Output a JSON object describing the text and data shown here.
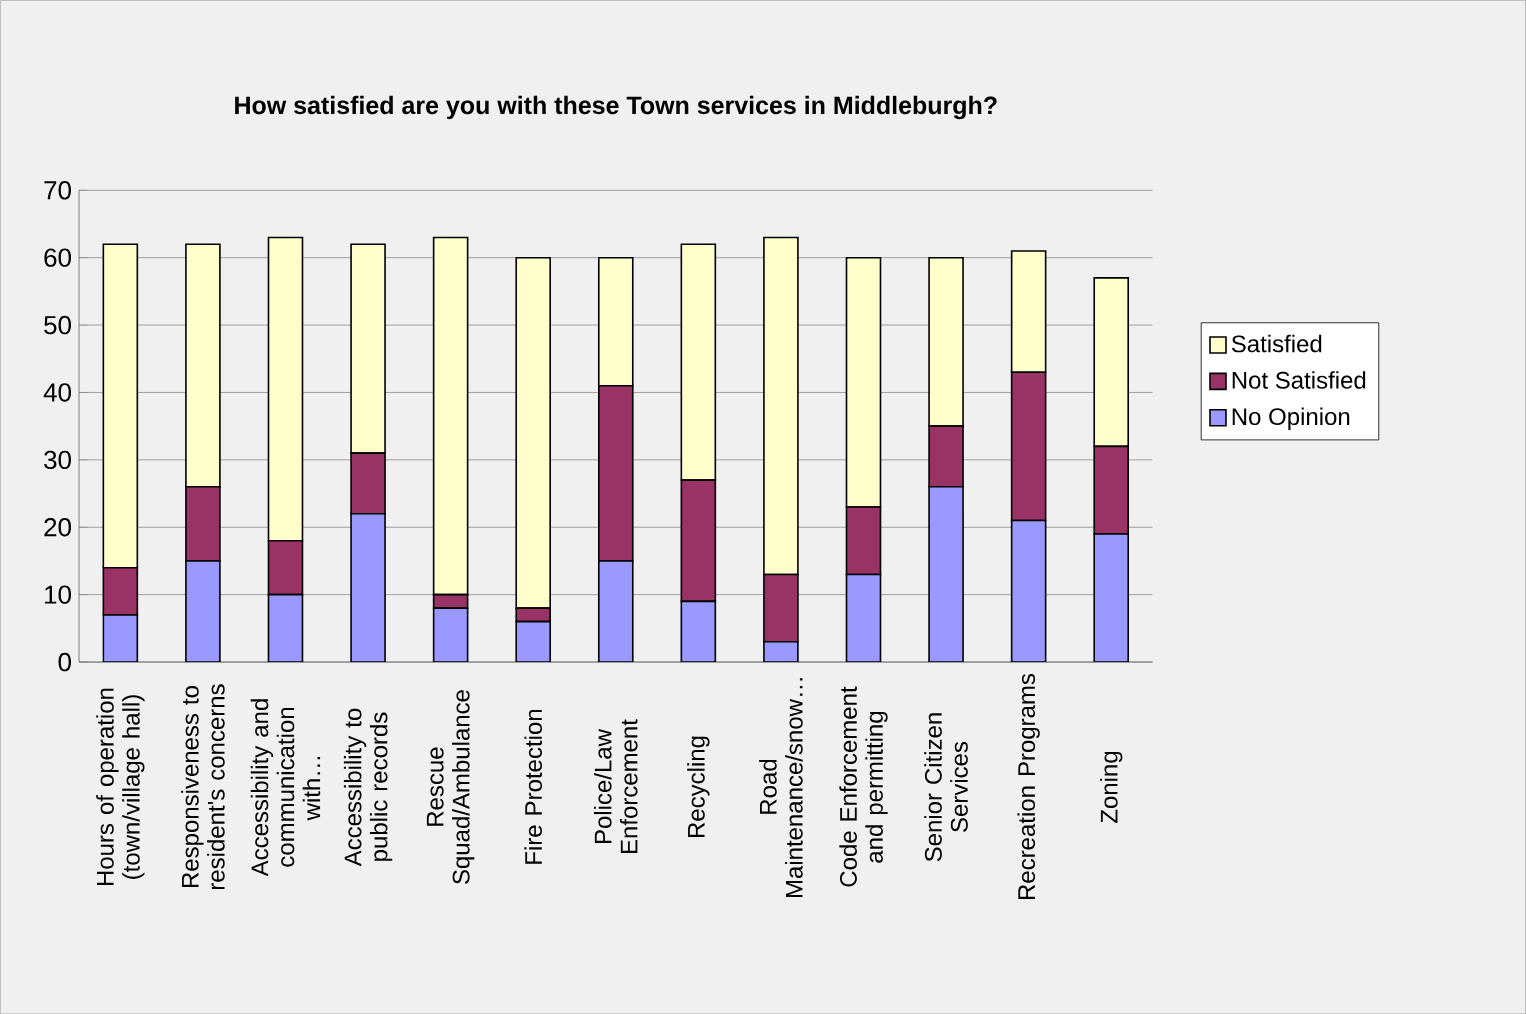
{
  "chart_data": {
    "type": "bar",
    "stacked": true,
    "title": "How satisfied are you with these Town services in Middleburgh?",
    "categories": [
      "Hours of operation (town/village hall)",
      "Responsiveness to resident's concerns",
      "Accessibility and communication with…",
      "Accessibility to public records",
      "Rescue Squad/Ambulance",
      "Fire Protection",
      "Police/Law Enforcement",
      "Recycling",
      "Road Maintenance/snow…",
      "Code Enforcement and permitting",
      "Senior Citizen Services",
      "Recreation Programs",
      "Zoning"
    ],
    "series": [
      {
        "name": "No Opinion",
        "color": "#9999ff",
        "values": [
          7,
          15,
          10,
          22,
          8,
          6,
          15,
          9,
          3,
          13,
          26,
          21,
          19
        ]
      },
      {
        "name": "Not Satisfied",
        "color": "#993366",
        "values": [
          7,
          11,
          8,
          9,
          2,
          2,
          26,
          18,
          10,
          10,
          9,
          22,
          13
        ]
      },
      {
        "name": "Satisfied",
        "color": "#ffffcc",
        "values": [
          48,
          36,
          45,
          31,
          53,
          52,
          19,
          35,
          50,
          37,
          25,
          18,
          25
        ]
      }
    ],
    "ylim": [
      0,
      70
    ],
    "yticks": [
      0,
      10,
      20,
      30,
      40,
      50,
      60,
      70
    ],
    "grid": "y",
    "legend": "right"
  }
}
